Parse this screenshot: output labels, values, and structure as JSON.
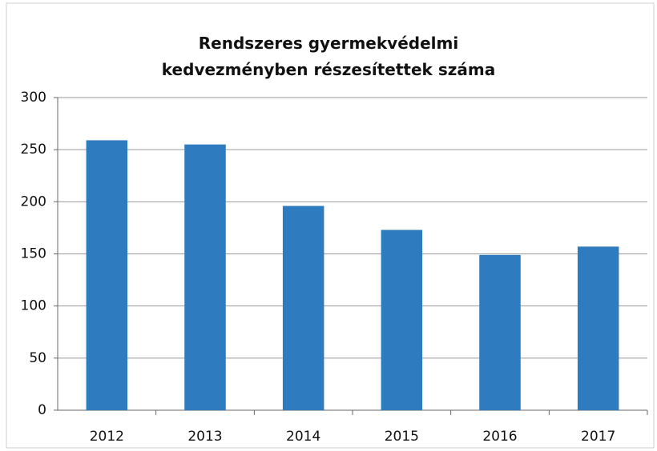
{
  "chart_data": {
    "type": "bar",
    "title": "Rendszeres gyermekvédelmi kedvezményben részesítettek száma",
    "categories": [
      "2012",
      "2013",
      "2014",
      "2015",
      "2016",
      "2017"
    ],
    "values": [
      259,
      255,
      196,
      173,
      149,
      157
    ],
    "color": "#2f7bbf",
    "ylim": [
      0,
      300
    ],
    "yticks": [
      0,
      50,
      100,
      150,
      200,
      250,
      300
    ],
    "grid": true
  }
}
